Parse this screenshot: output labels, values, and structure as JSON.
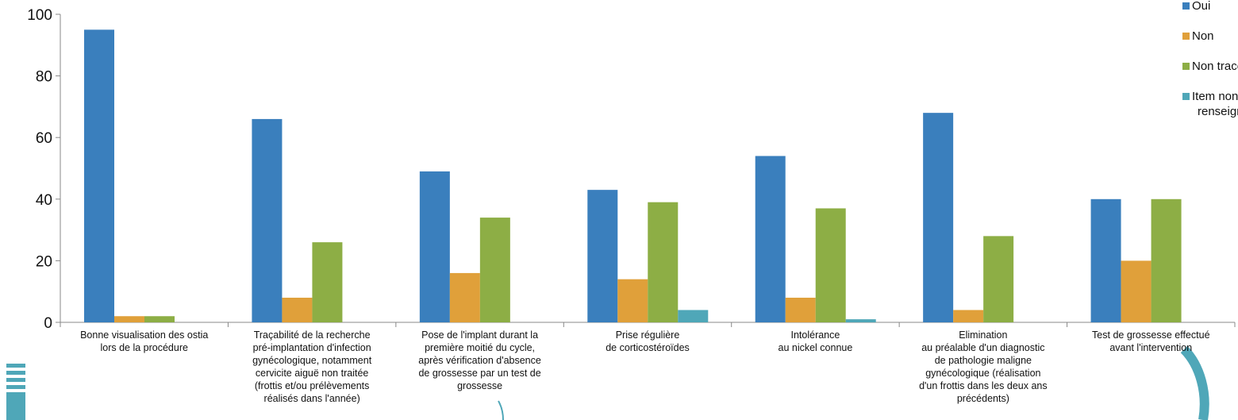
{
  "chart_data": {
    "type": "bar",
    "title": "",
    "xlabel": "",
    "ylabel": "",
    "ylim": [
      0,
      100
    ],
    "yticks": [
      0,
      20,
      40,
      60,
      80,
      100
    ],
    "grid": false,
    "legend_position": "top-right",
    "categories": [
      [
        "Bonne visualisation des ostia",
        "lors de la procédure"
      ],
      [
        "Traçabilité de la recherche",
        "pré-implantation d'infection",
        "gynécologique, notamment",
        "cervicite aiguë non traitée",
        "(frottis et/ou prélèvements",
        "réalisés dans l'année)"
      ],
      [
        "Pose de l'implant durant la",
        "première moitié du cycle,",
        "après vérification d'absence",
        "de grossesse par un test de",
        "grossesse"
      ],
      [
        "Prise régulière",
        "de corticostéroïdes"
      ],
      [
        "Intolérance",
        "au nickel connue"
      ],
      [
        "Elimination",
        "au préalable d'un diagnostic",
        "de pathologie maligne",
        "gynécologique (réalisation",
        "d'un frottis dans les deux ans",
        "précédents)"
      ],
      [
        "Test de grossesse effectué",
        "avant l'intervention"
      ]
    ],
    "series": [
      {
        "name": "Oui",
        "color": "#3A7FBD",
        "values": [
          95,
          66,
          49,
          43,
          54,
          68,
          40
        ]
      },
      {
        "name": "Non",
        "color": "#E0A03A",
        "values": [
          2,
          8,
          16,
          14,
          8,
          4,
          20
        ]
      },
      {
        "name": "Non tracé",
        "color": "#8DAE45",
        "values": [
          2,
          26,
          34,
          39,
          37,
          28,
          40
        ]
      },
      {
        "name": "Item non renseigné",
        "legend_lines": [
          "Item non",
          "renseigné"
        ],
        "color": "#4FA7B8",
        "values": [
          0,
          0,
          0,
          4,
          1,
          0,
          0
        ]
      }
    ]
  },
  "decor": {
    "accent_color": "#4FA7B8"
  }
}
